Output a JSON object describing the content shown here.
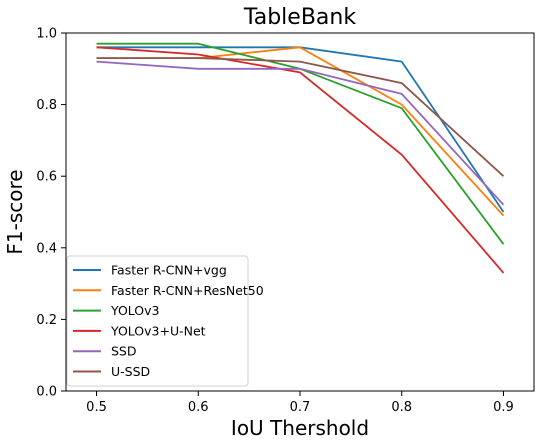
{
  "chart_data": {
    "type": "line",
    "title": "TableBank",
    "xlabel": "IoU Thershold",
    "ylabel": "F1-score",
    "x": [
      0.5,
      0.6,
      0.7,
      0.8,
      0.9
    ],
    "x_tick_labels": [
      "0.5",
      "0.6",
      "0.7",
      "0.8",
      "0.9"
    ],
    "xlim": [
      0.47,
      0.93
    ],
    "ylim": [
      0.0,
      1.0
    ],
    "y_ticks": [
      0.0,
      0.2,
      0.4,
      0.6,
      0.8,
      1.0
    ],
    "y_tick_labels": [
      "0.0",
      "0.2",
      "0.4",
      "0.6",
      "0.8",
      "1.0"
    ],
    "grid": false,
    "legend_position": "lower-left",
    "series": [
      {
        "name": "Faster R-CNN+vgg",
        "color": "#1f77b4",
        "values": [
          0.96,
          0.96,
          0.96,
          0.92,
          0.5
        ]
      },
      {
        "name": "Faster R-CNN+ResNet50",
        "color": "#ff7f0e",
        "values": [
          0.93,
          0.93,
          0.96,
          0.8,
          0.49
        ]
      },
      {
        "name": "YOLOv3",
        "color": "#2ca02c",
        "values": [
          0.97,
          0.97,
          0.9,
          0.79,
          0.41
        ]
      },
      {
        "name": "YOLOv3+U-Net",
        "color": "#d62728",
        "values": [
          0.96,
          0.94,
          0.89,
          0.66,
          0.33
        ]
      },
      {
        "name": "SSD",
        "color": "#9467bd",
        "values": [
          0.92,
          0.9,
          0.9,
          0.83,
          0.52
        ]
      },
      {
        "name": "U-SSD",
        "color": "#8c564b",
        "values": [
          0.93,
          0.93,
          0.92,
          0.86,
          0.6
        ]
      }
    ]
  }
}
